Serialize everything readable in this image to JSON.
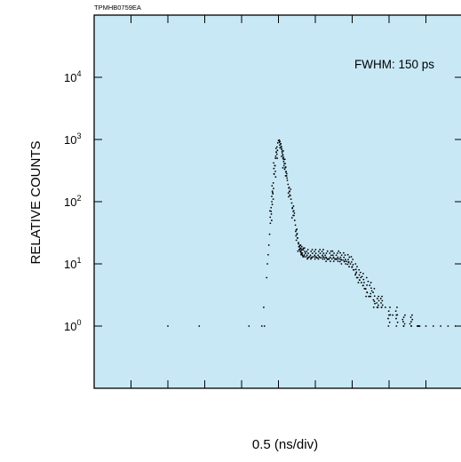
{
  "figure_code": "TPMHB0759EA",
  "colors": {
    "plot_background": "#c8e8f6",
    "frame": "#000000",
    "points": "#000000"
  },
  "chart_data": {
    "type": "scatter",
    "title": "",
    "xlabel": "0.5 (ns/div)",
    "ylabel": "RELATIVE COUNTS",
    "y_scale": "log",
    "ylim": [
      0.1,
      100000
    ],
    "xlim": [
      0,
      10
    ],
    "x_tick_divisions": 10,
    "x_tick_labels_shown": false,
    "y_ticks": [
      {
        "base": "10",
        "exp": "0",
        "value": 1
      },
      {
        "base": "10",
        "exp": "1",
        "value": 10
      },
      {
        "base": "10",
        "exp": "2",
        "value": 100
      },
      {
        "base": "10",
        "exp": "3",
        "value": 1000
      },
      {
        "base": "10",
        "exp": "4",
        "value": 10000
      }
    ],
    "annotations": [
      {
        "text": "FWHM: 150 ps"
      }
    ],
    "grid": false,
    "series": [
      {
        "points": [
          [
            2.0,
            1
          ],
          [
            2.85,
            1
          ],
          [
            4.2,
            1
          ],
          [
            4.55,
            1
          ],
          [
            4.62,
            1
          ],
          [
            4.6,
            2
          ],
          [
            4.68,
            6
          ],
          [
            4.7,
            10
          ],
          [
            4.72,
            14
          ],
          [
            4.74,
            20
          ],
          [
            4.76,
            30
          ],
          [
            4.78,
            45
          ],
          [
            4.8,
            70
          ],
          [
            4.82,
            100
          ],
          [
            4.84,
            140
          ],
          [
            4.86,
            200
          ],
          [
            4.88,
            280
          ],
          [
            4.9,
            380
          ],
          [
            4.92,
            500
          ],
          [
            4.94,
            630
          ],
          [
            4.96,
            760
          ],
          [
            4.98,
            880
          ],
          [
            5.0,
            960
          ],
          [
            5.02,
            980
          ],
          [
            5.04,
            930
          ],
          [
            5.06,
            850
          ],
          [
            5.08,
            750
          ],
          [
            5.1,
            650
          ],
          [
            5.12,
            560
          ],
          [
            5.14,
            480
          ],
          [
            5.16,
            410
          ],
          [
            5.18,
            350
          ],
          [
            5.2,
            300
          ],
          [
            5.22,
            260
          ],
          [
            5.24,
            220
          ],
          [
            5.26,
            190
          ],
          [
            5.28,
            165
          ],
          [
            5.3,
            145
          ],
          [
            5.32,
            125
          ],
          [
            5.34,
            110
          ],
          [
            5.36,
            95
          ],
          [
            5.38,
            80
          ],
          [
            5.4,
            70
          ],
          [
            5.42,
            60
          ],
          [
            5.44,
            50
          ],
          [
            5.46,
            42
          ],
          [
            5.48,
            35
          ],
          [
            5.5,
            30
          ],
          [
            5.52,
            26
          ],
          [
            5.54,
            22
          ],
          [
            5.56,
            19
          ],
          [
            5.58,
            17
          ],
          [
            5.6,
            15.5
          ],
          [
            5.62,
            14.5
          ],
          [
            5.64,
            14
          ],
          [
            5.66,
            13.5
          ],
          [
            5.7,
            13
          ],
          [
            5.75,
            13
          ],
          [
            5.8,
            12.5
          ],
          [
            5.85,
            13
          ],
          [
            5.9,
            12.5
          ],
          [
            5.95,
            13
          ],
          [
            6.0,
            13
          ],
          [
            6.05,
            12.5
          ],
          [
            6.1,
            13
          ],
          [
            6.15,
            12.5
          ],
          [
            6.2,
            13
          ],
          [
            6.25,
            12
          ],
          [
            6.3,
            12.5
          ],
          [
            6.35,
            12
          ],
          [
            6.4,
            12.5
          ],
          [
            6.45,
            12
          ],
          [
            6.5,
            12.5
          ],
          [
            6.55,
            12
          ],
          [
            6.6,
            12
          ],
          [
            6.65,
            12
          ],
          [
            6.7,
            11.5
          ],
          [
            6.75,
            11.5
          ],
          [
            6.8,
            11
          ],
          [
            6.85,
            11
          ],
          [
            6.9,
            10.5
          ],
          [
            6.95,
            10
          ],
          [
            7.0,
            9
          ],
          [
            7.05,
            8
          ],
          [
            7.1,
            7
          ],
          [
            7.15,
            6
          ],
          [
            7.2,
            5.5
          ],
          [
            7.25,
            5
          ],
          [
            7.3,
            4.5
          ],
          [
            7.35,
            4
          ],
          [
            7.4,
            3.5
          ],
          [
            7.45,
            3
          ],
          [
            7.5,
            3
          ],
          [
            7.6,
            2.5
          ],
          [
            7.7,
            2
          ],
          [
            7.8,
            2
          ],
          [
            7.9,
            2
          ],
          [
            8.0,
            1.5
          ],
          [
            8.1,
            1.5
          ],
          [
            8.2,
            1.5
          ],
          [
            8.4,
            1
          ],
          [
            8.6,
            1
          ],
          [
            8.8,
            1
          ],
          [
            9.0,
            1
          ],
          [
            9.2,
            1
          ],
          [
            9.4,
            1
          ],
          [
            9.6,
            1
          ],
          [
            9.8,
            1
          ],
          [
            10.0,
            1
          ]
        ],
        "band_points": [
          [
            5.56,
            16,
            21
          ],
          [
            5.6,
            15,
            20
          ],
          [
            5.64,
            14,
            19
          ],
          [
            5.7,
            13,
            18
          ],
          [
            5.8,
            12,
            17
          ],
          [
            5.9,
            12,
            17
          ],
          [
            6.0,
            12,
            17
          ],
          [
            6.1,
            12,
            17
          ],
          [
            6.2,
            12,
            17
          ],
          [
            6.3,
            11,
            16
          ],
          [
            6.4,
            11,
            16
          ],
          [
            6.5,
            11,
            16
          ],
          [
            6.6,
            11,
            16
          ],
          [
            6.7,
            10,
            15
          ],
          [
            6.8,
            10,
            15
          ],
          [
            6.9,
            9,
            14
          ],
          [
            7.0,
            8,
            13
          ],
          [
            7.1,
            6,
            10
          ],
          [
            7.2,
            5,
            8
          ],
          [
            7.3,
            4,
            7
          ],
          [
            7.4,
            3,
            6
          ],
          [
            7.5,
            3,
            5
          ],
          [
            7.6,
            2,
            4
          ],
          [
            7.7,
            2,
            3
          ],
          [
            7.8,
            2,
            3
          ],
          [
            8.0,
            1,
            2
          ],
          [
            8.2,
            1,
            2
          ],
          [
            8.4,
            1,
            1.5
          ],
          [
            8.6,
            1,
            1.5
          ],
          [
            8.8,
            1,
            1
          ]
        ],
        "rise_spread_points": [
          [
            4.8,
            50,
            90
          ],
          [
            4.85,
            110,
            180
          ],
          [
            4.9,
            250,
            420
          ],
          [
            4.95,
            500,
            720
          ],
          [
            5.05,
            700,
            900
          ],
          [
            5.1,
            500,
            700
          ],
          [
            5.15,
            350,
            520
          ],
          [
            5.2,
            240,
            360
          ],
          [
            5.3,
            120,
            170
          ],
          [
            5.4,
            55,
            85
          ],
          [
            5.5,
            24,
            36
          ]
        ]
      }
    ]
  }
}
